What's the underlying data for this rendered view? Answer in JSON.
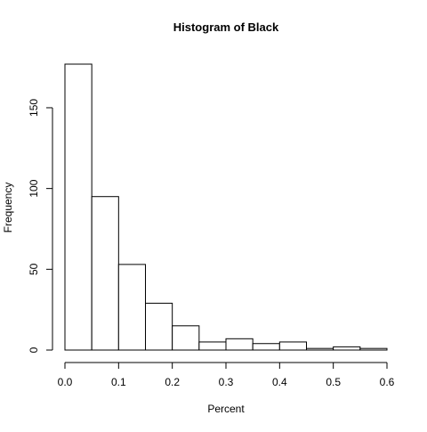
{
  "chart_data": {
    "type": "bar",
    "title": "Histogram of Black",
    "xlabel": "Percent",
    "ylabel": "Frequency",
    "bins": [
      {
        "start": 0.0,
        "end": 0.05,
        "count": 177
      },
      {
        "start": 0.05,
        "end": 0.1,
        "count": 95
      },
      {
        "start": 0.1,
        "end": 0.15,
        "count": 53
      },
      {
        "start": 0.15,
        "end": 0.2,
        "count": 29
      },
      {
        "start": 0.2,
        "end": 0.25,
        "count": 15
      },
      {
        "start": 0.25,
        "end": 0.3,
        "count": 5
      },
      {
        "start": 0.3,
        "end": 0.35,
        "count": 7
      },
      {
        "start": 0.35,
        "end": 0.4,
        "count": 4
      },
      {
        "start": 0.4,
        "end": 0.45,
        "count": 5
      },
      {
        "start": 0.45,
        "end": 0.5,
        "count": 1
      },
      {
        "start": 0.5,
        "end": 0.55,
        "count": 2
      },
      {
        "start": 0.55,
        "end": 0.6,
        "count": 1
      }
    ],
    "xticks": [
      "0.0",
      "0.1",
      "0.2",
      "0.3",
      "0.4",
      "0.5",
      "0.6"
    ],
    "yticks": [
      "0",
      "50",
      "100",
      "150"
    ],
    "xlim": [
      0,
      0.6
    ],
    "ylim": [
      0,
      177
    ],
    "grid": false,
    "colors": {
      "bar_fill": "#ffffff",
      "bar_stroke": "#000000"
    }
  }
}
